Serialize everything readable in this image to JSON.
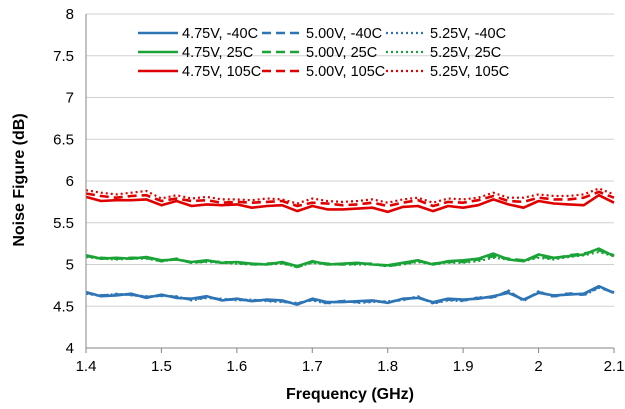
{
  "chart_data": {
    "type": "line",
    "xlabel": "Frequency (GHz)",
    "ylabel": "Noise Figure (dB)",
    "xlim": [
      1.4,
      2.1
    ],
    "ylim": [
      4,
      8
    ],
    "xticks": [
      "1.4",
      "1.5",
      "1.6",
      "1.7",
      "1.8",
      "1.9",
      "2",
      "2.1"
    ],
    "yticks": [
      "4",
      "4.5",
      "5",
      "5.5",
      "6",
      "6.5",
      "7",
      "7.5",
      "8"
    ],
    "grid": "horizontal",
    "legend": "top-center, 3 columns",
    "x": [
      1.4,
      1.42,
      1.44,
      1.46,
      1.48,
      1.5,
      1.52,
      1.54,
      1.56,
      1.58,
      1.6,
      1.62,
      1.64,
      1.66,
      1.68,
      1.7,
      1.72,
      1.74,
      1.76,
      1.78,
      1.8,
      1.82,
      1.84,
      1.86,
      1.88,
      1.9,
      1.92,
      1.94,
      1.96,
      1.98,
      2.0,
      2.02,
      2.04,
      2.06,
      2.08,
      2.1
    ],
    "series": [
      {
        "name": "4.75V, -40C",
        "color": "#2E75B6",
        "dash": "solid",
        "values": [
          4.67,
          4.62,
          4.63,
          4.65,
          4.6,
          4.64,
          4.6,
          4.59,
          4.62,
          4.57,
          4.59,
          4.56,
          4.58,
          4.57,
          4.52,
          4.59,
          4.55,
          4.55,
          4.56,
          4.57,
          4.54,
          4.59,
          4.6,
          4.55,
          4.59,
          4.58,
          4.59,
          4.62,
          4.66,
          4.58,
          4.66,
          4.63,
          4.64,
          4.65,
          4.74,
          4.66
        ]
      },
      {
        "name": "5.00V, -40C",
        "color": "#2E75B6",
        "dash": "dashed",
        "values": [
          4.66,
          4.63,
          4.64,
          4.64,
          4.61,
          4.63,
          4.61,
          4.58,
          4.61,
          4.58,
          4.58,
          4.57,
          4.57,
          4.56,
          4.53,
          4.58,
          4.54,
          4.56,
          4.55,
          4.56,
          4.55,
          4.58,
          4.61,
          4.54,
          4.58,
          4.57,
          4.6,
          4.61,
          4.68,
          4.57,
          4.67,
          4.62,
          4.65,
          4.64,
          4.73,
          4.66
        ]
      },
      {
        "name": "5.25V, -40C",
        "color": "#2E75B6",
        "dash": "dotted",
        "values": [
          4.65,
          4.62,
          4.65,
          4.63,
          4.62,
          4.62,
          4.62,
          4.57,
          4.6,
          4.59,
          4.57,
          4.58,
          4.56,
          4.55,
          4.54,
          4.57,
          4.53,
          4.57,
          4.54,
          4.55,
          4.56,
          4.57,
          4.62,
          4.53,
          4.57,
          4.56,
          4.61,
          4.6,
          4.69,
          4.56,
          4.68,
          4.61,
          4.66,
          4.63,
          4.72,
          4.67
        ]
      },
      {
        "name": "4.75V, 25C",
        "color": "#1AA337",
        "dash": "solid",
        "values": [
          5.11,
          5.07,
          5.08,
          5.07,
          5.09,
          5.05,
          5.06,
          5.03,
          5.05,
          5.02,
          5.03,
          5.01,
          5.0,
          5.03,
          4.98,
          5.04,
          5.0,
          5.01,
          5.02,
          5.0,
          4.99,
          5.02,
          5.05,
          5.0,
          5.04,
          5.05,
          5.07,
          5.13,
          5.06,
          5.04,
          5.12,
          5.08,
          5.1,
          5.12,
          5.19,
          5.1
        ]
      },
      {
        "name": "5.00V, 25C",
        "color": "#1AA337",
        "dash": "dashed",
        "values": [
          5.1,
          5.08,
          5.07,
          5.08,
          5.08,
          5.04,
          5.07,
          5.02,
          5.04,
          5.03,
          5.02,
          5.0,
          5.01,
          5.02,
          4.97,
          5.03,
          5.01,
          5.0,
          5.01,
          5.01,
          4.98,
          5.01,
          5.04,
          5.01,
          5.03,
          5.03,
          5.06,
          5.1,
          5.07,
          5.05,
          5.1,
          5.07,
          5.11,
          5.13,
          5.17,
          5.11
        ]
      },
      {
        "name": "5.25V, 25C",
        "color": "#1AA337",
        "dash": "dotted",
        "values": [
          5.09,
          5.07,
          5.06,
          5.07,
          5.07,
          5.04,
          5.06,
          5.02,
          5.03,
          5.02,
          5.01,
          5.0,
          5.0,
          5.01,
          4.97,
          5.02,
          5.0,
          5.0,
          5.0,
          5.0,
          4.98,
          5.0,
          5.03,
          5.0,
          5.02,
          5.02,
          5.04,
          5.08,
          5.06,
          5.04,
          5.08,
          5.06,
          5.09,
          5.11,
          5.15,
          5.1
        ]
      },
      {
        "name": "4.75V, 105C",
        "color": "#E00000",
        "dash": "solid",
        "values": [
          5.81,
          5.76,
          5.77,
          5.77,
          5.78,
          5.71,
          5.76,
          5.7,
          5.72,
          5.71,
          5.72,
          5.68,
          5.7,
          5.71,
          5.64,
          5.7,
          5.66,
          5.66,
          5.67,
          5.68,
          5.63,
          5.69,
          5.7,
          5.64,
          5.7,
          5.68,
          5.71,
          5.78,
          5.72,
          5.68,
          5.76,
          5.73,
          5.72,
          5.71,
          5.83,
          5.74
        ]
      },
      {
        "name": "5.00V, 105C",
        "color": "#E00000",
        "dash": "dashed",
        "values": [
          5.85,
          5.82,
          5.8,
          5.82,
          5.83,
          5.76,
          5.79,
          5.76,
          5.77,
          5.74,
          5.75,
          5.74,
          5.75,
          5.76,
          5.7,
          5.74,
          5.73,
          5.71,
          5.72,
          5.74,
          5.7,
          5.74,
          5.77,
          5.7,
          5.75,
          5.74,
          5.77,
          5.82,
          5.76,
          5.75,
          5.8,
          5.78,
          5.78,
          5.8,
          5.87,
          5.8
        ]
      },
      {
        "name": "5.25V, 105C",
        "color": "#E00000",
        "dash": "dotted",
        "values": [
          5.89,
          5.86,
          5.84,
          5.86,
          5.88,
          5.79,
          5.83,
          5.79,
          5.81,
          5.78,
          5.78,
          5.77,
          5.79,
          5.78,
          5.73,
          5.79,
          5.76,
          5.75,
          5.76,
          5.78,
          5.74,
          5.78,
          5.8,
          5.74,
          5.79,
          5.78,
          5.8,
          5.86,
          5.8,
          5.8,
          5.84,
          5.82,
          5.82,
          5.84,
          5.91,
          5.84
        ]
      }
    ]
  }
}
